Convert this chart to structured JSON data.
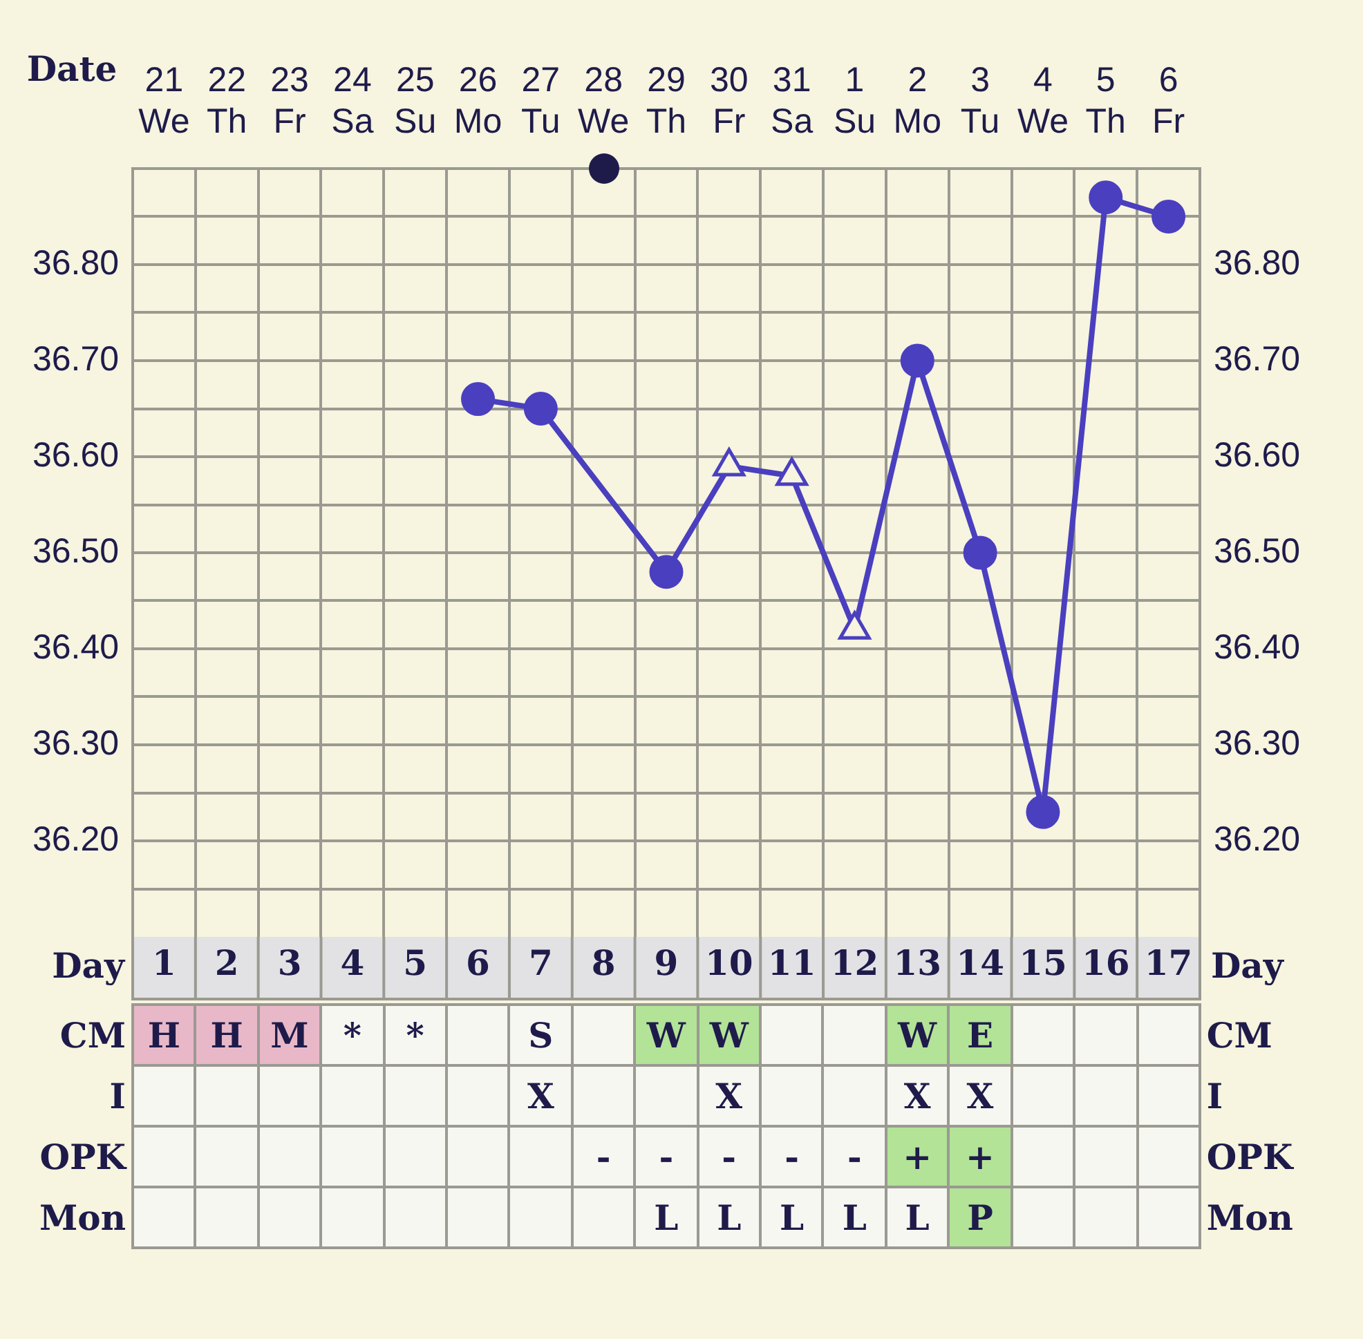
{
  "chart_data": [
    {
      "type": "line",
      "xlabel": "Date",
      "categories": [
        "21\nWe",
        "22\nTh",
        "23\nFr",
        "24\nSa",
        "25\nSu",
        "26\nMo",
        "27\nTu",
        "28\nWe",
        "29\nTh",
        "30\nFr",
        "31\nSa",
        "1\nSu",
        "2\nMo",
        "3\nTu",
        "4\nWe",
        "5\nTh",
        "6\nFr"
      ],
      "series": [
        {
          "type": "line",
          "color": "#4a3fbf",
          "marker": "none",
          "line_style": "solid",
          "values": [
            null,
            null,
            null,
            null,
            null,
            36.66,
            36.65,
            null,
            36.48,
            36.59,
            36.58,
            36.42,
            36.7,
            36.5,
            36.23,
            36.87,
            36.85
          ]
        },
        {
          "type": "scatter",
          "color": "#4a3fbf",
          "marker": "circle",
          "values": [
            null,
            null,
            null,
            null,
            null,
            36.66,
            36.65,
            null,
            36.48,
            null,
            null,
            null,
            36.7,
            36.5,
            36.23,
            36.87,
            36.85
          ]
        },
        {
          "type": "scatter",
          "color": "#4a3fbf",
          "marker": "triangle",
          "values": [
            null,
            null,
            null,
            null,
            null,
            null,
            null,
            null,
            null,
            36.59,
            36.58,
            36.42,
            null,
            null,
            null,
            null,
            null
          ]
        }
      ],
      "ylim": [
        36.1,
        36.9
      ],
      "yticks": [
        {
          "value": 36.15,
          "label": null
        },
        {
          "value": 36.2,
          "label": "36.20"
        },
        {
          "value": 36.25,
          "label": null
        },
        {
          "value": 36.3,
          "label": "36.30"
        },
        {
          "value": 36.35,
          "label": null
        },
        {
          "value": 36.4,
          "label": "36.40"
        },
        {
          "value": 36.45,
          "label": null
        },
        {
          "value": 36.5,
          "label": "36.50"
        },
        {
          "value": 36.55,
          "label": null
        },
        {
          "value": 36.6,
          "label": "36.60"
        },
        {
          "value": 36.65,
          "label": null
        },
        {
          "value": 36.7,
          "label": "36.70"
        },
        {
          "value": 36.75,
          "label": null
        },
        {
          "value": 36.8,
          "label": "36.80"
        },
        {
          "value": 36.85,
          "label": null
        }
      ],
      "y2lim": [
        36.1,
        36.9
      ],
      "y2ticks": [
        {
          "value": 36.15,
          "label": null
        },
        {
          "value": 36.2,
          "label": "36.20"
        },
        {
          "value": 36.25,
          "label": null
        },
        {
          "value": 36.3,
          "label": "36.30"
        },
        {
          "value": 36.35,
          "label": null
        },
        {
          "value": 36.4,
          "label": "36.40"
        },
        {
          "value": 36.45,
          "label": null
        },
        {
          "value": 36.5,
          "label": "36.50"
        },
        {
          "value": 36.55,
          "label": null
        },
        {
          "value": 36.6,
          "label": "36.60"
        },
        {
          "value": 36.65,
          "label": null
        },
        {
          "value": 36.7,
          "label": "36.70"
        },
        {
          "value": 36.75,
          "label": null
        },
        {
          "value": 36.8,
          "label": "36.80"
        },
        {
          "value": 36.85,
          "label": null
        }
      ],
      "x2label": "Day",
      "x2lim": [
        0.5,
        17.5
      ],
      "x2ticks": [
        1,
        2,
        3,
        4,
        5,
        6,
        7,
        8,
        9,
        10,
        11,
        12,
        13,
        14,
        15,
        16,
        17
      ],
      "grid": true,
      "legend": false
    },
    {
      "type": "other",
      "y_categories": [
        "CM",
        "I",
        "OPK",
        "Mon"
      ],
      "y2_categories": [
        "CM",
        "I",
        "OPK",
        "Mon"
      ],
      "cell_labels": [
        [
          "H",
          "H",
          "M",
          "*",
          "*",
          null,
          "S",
          null,
          "W",
          "W",
          null,
          null,
          "W",
          "E",
          null,
          null,
          null
        ],
        [
          null,
          null,
          null,
          null,
          null,
          null,
          "X",
          null,
          null,
          "X",
          null,
          null,
          "X",
          "X",
          null,
          null,
          null
        ],
        [
          null,
          null,
          null,
          null,
          null,
          null,
          null,
          "-",
          "-",
          "-",
          "-",
          "-",
          "+",
          "+",
          null,
          null,
          null
        ],
        [
          null,
          null,
          null,
          null,
          null,
          null,
          null,
          null,
          "L",
          "L",
          "L",
          "L",
          "L",
          "P",
          null,
          null,
          null
        ]
      ],
      "colors": [
        [
          "#e8b8c8",
          "#e8b8c8",
          "#e8b8c8",
          null,
          null,
          null,
          null,
          null,
          "#b3e397",
          "#b3e397",
          null,
          null,
          "#b3e397",
          "#b3e397",
          null,
          null,
          null
        ],
        [
          null,
          null,
          null,
          null,
          null,
          null,
          null,
          null,
          null,
          null,
          null,
          null,
          null,
          null,
          null,
          null,
          null
        ],
        [
          null,
          null,
          null,
          null,
          null,
          null,
          null,
          null,
          null,
          null,
          null,
          null,
          "#b3e397",
          "#b3e397",
          null,
          null,
          null
        ],
        [
          null,
          null,
          null,
          null,
          null,
          null,
          null,
          null,
          null,
          null,
          null,
          null,
          null,
          "#b3e397",
          null,
          null,
          null
        ]
      ]
    }
  ]
}
